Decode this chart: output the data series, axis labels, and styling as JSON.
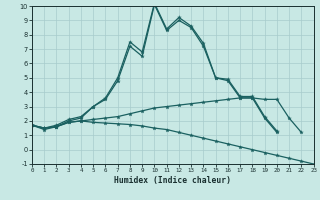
{
  "xlabel": "Humidex (Indice chaleur)",
  "xlim": [
    0,
    23
  ],
  "ylim": [
    -1,
    10
  ],
  "xticks": [
    0,
    1,
    2,
    3,
    4,
    5,
    6,
    7,
    8,
    9,
    10,
    11,
    12,
    13,
    14,
    15,
    16,
    17,
    18,
    19,
    20,
    21,
    22,
    23
  ],
  "yticks": [
    -1,
    0,
    1,
    2,
    3,
    4,
    5,
    6,
    7,
    8,
    9,
    10
  ],
  "background_color": "#c8e8e4",
  "grid_color": "#a8cccc",
  "line_color": "#1a6060",
  "line1_x": [
    0,
    1,
    2,
    3,
    4,
    5,
    6,
    7,
    8,
    9,
    10,
    11,
    12,
    13,
    14,
    15,
    16,
    17,
    18,
    19,
    20
  ],
  "line1_y": [
    1.7,
    1.4,
    1.6,
    2.0,
    2.2,
    3.0,
    3.5,
    4.8,
    7.2,
    6.5,
    10.1,
    8.3,
    9.0,
    8.5,
    7.2,
    5.0,
    4.8,
    3.6,
    3.6,
    2.2,
    1.2
  ],
  "line2_x": [
    0,
    1,
    2,
    3,
    4,
    5,
    6,
    7,
    8,
    9,
    10,
    11,
    12,
    13,
    14,
    15,
    16,
    17,
    18,
    19,
    20
  ],
  "line2_y": [
    1.7,
    1.5,
    1.7,
    2.1,
    2.3,
    3.0,
    3.6,
    5.0,
    7.5,
    6.8,
    10.2,
    8.4,
    9.2,
    8.6,
    7.4,
    5.0,
    4.9,
    3.7,
    3.7,
    2.3,
    1.3
  ],
  "line3_x": [
    0,
    1,
    2,
    3,
    4,
    5,
    6,
    7,
    8,
    9,
    10,
    11,
    12,
    13,
    14,
    15,
    16,
    17,
    18,
    19,
    20,
    21,
    22,
    23
  ],
  "line3_y": [
    1.7,
    1.5,
    1.6,
    1.9,
    2.0,
    2.1,
    2.2,
    2.3,
    2.5,
    2.7,
    2.9,
    3.0,
    3.1,
    3.2,
    3.3,
    3.4,
    3.5,
    3.6,
    3.6,
    3.5,
    3.5,
    2.2,
    1.2,
    null
  ],
  "line4_x": [
    0,
    1,
    2,
    3,
    4,
    5,
    6,
    7,
    8,
    9,
    10,
    11,
    12,
    13,
    14,
    15,
    16,
    17,
    18,
    19,
    20,
    21,
    22,
    23
  ],
  "line4_y": [
    1.7,
    1.5,
    1.6,
    1.9,
    2.0,
    1.9,
    1.85,
    1.8,
    1.75,
    1.65,
    1.5,
    1.4,
    1.2,
    1.0,
    0.8,
    0.6,
    0.4,
    0.2,
    0.0,
    -0.2,
    -0.4,
    -0.6,
    -0.8,
    -1.0
  ]
}
